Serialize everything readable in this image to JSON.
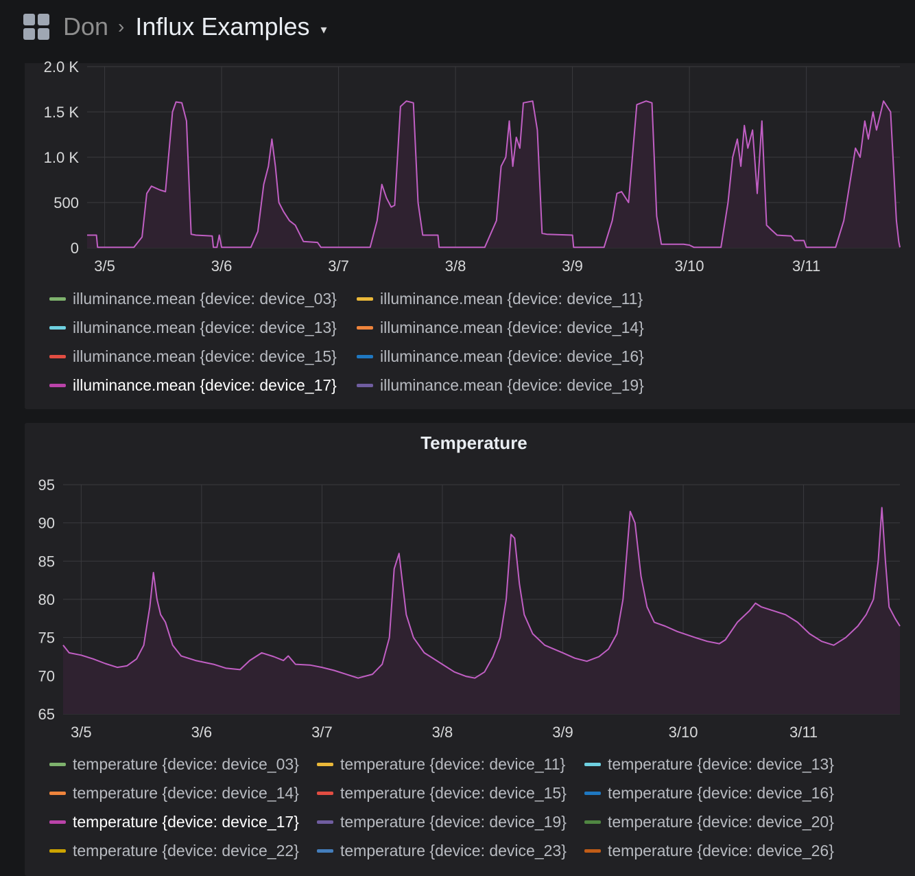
{
  "header": {
    "folder": "Don",
    "separator": "›",
    "dashboard_title": "Influx Examples",
    "caret": "▾",
    "apps_icon": "grid-apps-icon"
  },
  "colors": {
    "series_line": "#c15fc4",
    "series_fill": "#2f2230",
    "grid": "#3a3a3e",
    "axis_text": "#d8d9da"
  },
  "panels": {
    "illuminance": {
      "title": "",
      "legend": [
        {
          "label": "illuminance.mean {device: device_03}",
          "color": "#7eb26d"
        },
        {
          "label": "illuminance.mean {device: device_11}",
          "color": "#eab839"
        },
        {
          "label": "illuminance.mean {device: device_13}",
          "color": "#6ed0e0"
        },
        {
          "label": "illuminance.mean {device: device_14}",
          "color": "#ef843c"
        },
        {
          "label": "illuminance.mean {device: device_15}",
          "color": "#e24d42"
        },
        {
          "label": "illuminance.mean {device: device_16}",
          "color": "#1f78c1"
        },
        {
          "label": "illuminance.mean {device: device_17}",
          "color": "#ba43a9"
        },
        {
          "label": "illuminance.mean {device: device_19}",
          "color": "#705da0"
        }
      ]
    },
    "temperature": {
      "title": "Temperature",
      "legend": [
        {
          "label": "temperature {device: device_03}",
          "color": "#7eb26d"
        },
        {
          "label": "temperature {device: device_11}",
          "color": "#eab839"
        },
        {
          "label": "temperature {device: device_13}",
          "color": "#6ed0e0"
        },
        {
          "label": "temperature {device: device_14}",
          "color": "#ef843c"
        },
        {
          "label": "temperature {device: device_15}",
          "color": "#e24d42"
        },
        {
          "label": "temperature {device: device_16}",
          "color": "#1f78c1"
        },
        {
          "label": "temperature {device: device_17}",
          "color": "#ba43a9"
        },
        {
          "label": "temperature {device: device_19}",
          "color": "#705da0"
        },
        {
          "label": "temperature {device: device_20}",
          "color": "#508642"
        },
        {
          "label": "temperature {device: device_22}",
          "color": "#cca300"
        },
        {
          "label": "temperature {device: device_23}",
          "color": "#447ebc"
        },
        {
          "label": "temperature {device: device_26}",
          "color": "#c15c17"
        }
      ]
    }
  },
  "chart_data": [
    {
      "type": "area",
      "title": "",
      "xlabel": "",
      "ylabel": "",
      "x_ticks": [
        "3/5",
        "3/6",
        "3/7",
        "3/8",
        "3/9",
        "3/10",
        "3/11"
      ],
      "y_ticks": [
        "0",
        "500",
        "1.0 K",
        "1.5 K",
        "2.0 K"
      ],
      "xlim": [
        4.85,
        11.8
      ],
      "ylim": [
        0,
        2000
      ],
      "grid": true,
      "legend_position": "bottom",
      "series": [
        {
          "name": "illuminance.mean {device: device_17}",
          "points": [
            [
              4.85,
              140
            ],
            [
              4.93,
              140
            ],
            [
              4.94,
              5
            ],
            [
              5.25,
              5
            ],
            [
              5.32,
              120
            ],
            [
              5.36,
              600
            ],
            [
              5.4,
              680
            ],
            [
              5.47,
              640
            ],
            [
              5.52,
              620
            ],
            [
              5.58,
              1500
            ],
            [
              5.61,
              1610
            ],
            [
              5.66,
              1600
            ],
            [
              5.7,
              1400
            ],
            [
              5.74,
              150
            ],
            [
              5.78,
              140
            ],
            [
              5.92,
              130
            ],
            [
              5.93,
              5
            ],
            [
              5.96,
              5
            ],
            [
              5.98,
              140
            ],
            [
              6.0,
              5
            ],
            [
              6.1,
              5
            ],
            [
              6.25,
              5
            ],
            [
              6.31,
              180
            ],
            [
              6.36,
              700
            ],
            [
              6.4,
              900
            ],
            [
              6.43,
              1200
            ],
            [
              6.46,
              900
            ],
            [
              6.49,
              500
            ],
            [
              6.53,
              400
            ],
            [
              6.58,
              300
            ],
            [
              6.63,
              250
            ],
            [
              6.7,
              70
            ],
            [
              6.82,
              60
            ],
            [
              6.85,
              5
            ],
            [
              7.1,
              5
            ],
            [
              7.27,
              5
            ],
            [
              7.33,
              300
            ],
            [
              7.37,
              700
            ],
            [
              7.41,
              550
            ],
            [
              7.45,
              450
            ],
            [
              7.48,
              470
            ],
            [
              7.53,
              1560
            ],
            [
              7.58,
              1620
            ],
            [
              7.64,
              1600
            ],
            [
              7.68,
              500
            ],
            [
              7.72,
              140
            ],
            [
              7.85,
              140
            ],
            [
              7.86,
              5
            ],
            [
              8.25,
              5
            ],
            [
              8.35,
              300
            ],
            [
              8.39,
              900
            ],
            [
              8.43,
              1000
            ],
            [
              8.46,
              1400
            ],
            [
              8.49,
              900
            ],
            [
              8.52,
              1220
            ],
            [
              8.55,
              1100
            ],
            [
              8.58,
              1600
            ],
            [
              8.66,
              1620
            ],
            [
              8.7,
              1300
            ],
            [
              8.74,
              160
            ],
            [
              8.78,
              150
            ],
            [
              9.0,
              140
            ],
            [
              9.01,
              5
            ],
            [
              9.27,
              5
            ],
            [
              9.34,
              300
            ],
            [
              9.38,
              600
            ],
            [
              9.42,
              620
            ],
            [
              9.48,
              500
            ],
            [
              9.55,
              1580
            ],
            [
              9.63,
              1620
            ],
            [
              9.68,
              1600
            ],
            [
              9.72,
              350
            ],
            [
              9.76,
              40
            ],
            [
              9.95,
              40
            ],
            [
              10.0,
              30
            ],
            [
              10.04,
              5
            ],
            [
              10.27,
              5
            ],
            [
              10.33,
              500
            ],
            [
              10.37,
              1000
            ],
            [
              10.41,
              1200
            ],
            [
              10.44,
              900
            ],
            [
              10.47,
              1350
            ],
            [
              10.5,
              1100
            ],
            [
              10.54,
              1300
            ],
            [
              10.58,
              600
            ],
            [
              10.62,
              1400
            ],
            [
              10.66,
              250
            ],
            [
              10.7,
              200
            ],
            [
              10.75,
              140
            ],
            [
              10.87,
              130
            ],
            [
              10.9,
              80
            ],
            [
              10.98,
              80
            ],
            [
              11.0,
              5
            ],
            [
              11.25,
              5
            ],
            [
              11.32,
              300
            ],
            [
              11.37,
              700
            ],
            [
              11.42,
              1100
            ],
            [
              11.46,
              1000
            ],
            [
              11.5,
              1400
            ],
            [
              11.53,
              1200
            ],
            [
              11.57,
              1500
            ],
            [
              11.6,
              1300
            ],
            [
              11.66,
              1620
            ],
            [
              11.72,
              1500
            ],
            [
              11.77,
              300
            ],
            [
              11.79,
              70
            ],
            [
              11.8,
              5
            ]
          ]
        }
      ]
    },
    {
      "type": "area",
      "title": "Temperature",
      "xlabel": "",
      "ylabel": "",
      "x_ticks": [
        "3/5",
        "3/6",
        "3/7",
        "3/8",
        "3/9",
        "3/10",
        "3/11"
      ],
      "y_ticks": [
        "65",
        "70",
        "75",
        "80",
        "85",
        "90",
        "95"
      ],
      "xlim": [
        4.85,
        11.8
      ],
      "ylim": [
        65,
        95
      ],
      "grid": true,
      "legend_position": "bottom",
      "series": [
        {
          "name": "temperature {device: device_17}",
          "points": [
            [
              4.85,
              74
            ],
            [
              4.9,
              73
            ],
            [
              5.0,
              72.7
            ],
            [
              5.1,
              72.2
            ],
            [
              5.2,
              71.6
            ],
            [
              5.3,
              71.1
            ],
            [
              5.38,
              71.3
            ],
            [
              5.46,
              72.2
            ],
            [
              5.52,
              74
            ],
            [
              5.57,
              79
            ],
            [
              5.6,
              83.5
            ],
            [
              5.63,
              80
            ],
            [
              5.66,
              78
            ],
            [
              5.7,
              77
            ],
            [
              5.76,
              74
            ],
            [
              5.83,
              72.6
            ],
            [
              5.95,
              72
            ],
            [
              6.1,
              71.5
            ],
            [
              6.2,
              71
            ],
            [
              6.32,
              70.8
            ],
            [
              6.4,
              72
            ],
            [
              6.5,
              73
            ],
            [
              6.6,
              72.5
            ],
            [
              6.68,
              72
            ],
            [
              6.72,
              72.6
            ],
            [
              6.78,
              71.5
            ],
            [
              6.9,
              71.4
            ],
            [
              7.0,
              71.1
            ],
            [
              7.1,
              70.7
            ],
            [
              7.2,
              70.2
            ],
            [
              7.3,
              69.7
            ],
            [
              7.42,
              70.2
            ],
            [
              7.5,
              71.5
            ],
            [
              7.56,
              75
            ],
            [
              7.6,
              84
            ],
            [
              7.64,
              86
            ],
            [
              7.67,
              82
            ],
            [
              7.7,
              78
            ],
            [
              7.76,
              75
            ],
            [
              7.85,
              73
            ],
            [
              8.0,
              71.5
            ],
            [
              8.1,
              70.5
            ],
            [
              8.2,
              69.9
            ],
            [
              8.27,
              69.7
            ],
            [
              8.35,
              70.5
            ],
            [
              8.42,
              72.5
            ],
            [
              8.48,
              75
            ],
            [
              8.53,
              80
            ],
            [
              8.57,
              88.5
            ],
            [
              8.6,
              88
            ],
            [
              8.64,
              82
            ],
            [
              8.68,
              78
            ],
            [
              8.75,
              75.5
            ],
            [
              8.85,
              74
            ],
            [
              9.0,
              73
            ],
            [
              9.1,
              72.3
            ],
            [
              9.2,
              71.9
            ],
            [
              9.3,
              72.5
            ],
            [
              9.38,
              73.5
            ],
            [
              9.45,
              75.5
            ],
            [
              9.5,
              80
            ],
            [
              9.56,
              91.5
            ],
            [
              9.6,
              90
            ],
            [
              9.65,
              83
            ],
            [
              9.7,
              79
            ],
            [
              9.76,
              77
            ],
            [
              9.85,
              76.5
            ],
            [
              9.95,
              75.8
            ],
            [
              10.1,
              75
            ],
            [
              10.2,
              74.5
            ],
            [
              10.3,
              74.2
            ],
            [
              10.35,
              74.7
            ],
            [
              10.45,
              77
            ],
            [
              10.55,
              78.5
            ],
            [
              10.6,
              79.5
            ],
            [
              10.65,
              79
            ],
            [
              10.75,
              78.5
            ],
            [
              10.85,
              78
            ],
            [
              10.95,
              77
            ],
            [
              11.05,
              75.5
            ],
            [
              11.15,
              74.5
            ],
            [
              11.25,
              74
            ],
            [
              11.35,
              75
            ],
            [
              11.45,
              76.5
            ],
            [
              11.52,
              78
            ],
            [
              11.58,
              80
            ],
            [
              11.62,
              85
            ],
            [
              11.65,
              92
            ],
            [
              11.68,
              85
            ],
            [
              11.71,
              79
            ],
            [
              11.76,
              77.5
            ],
            [
              11.8,
              76.5
            ]
          ]
        }
      ]
    }
  ]
}
